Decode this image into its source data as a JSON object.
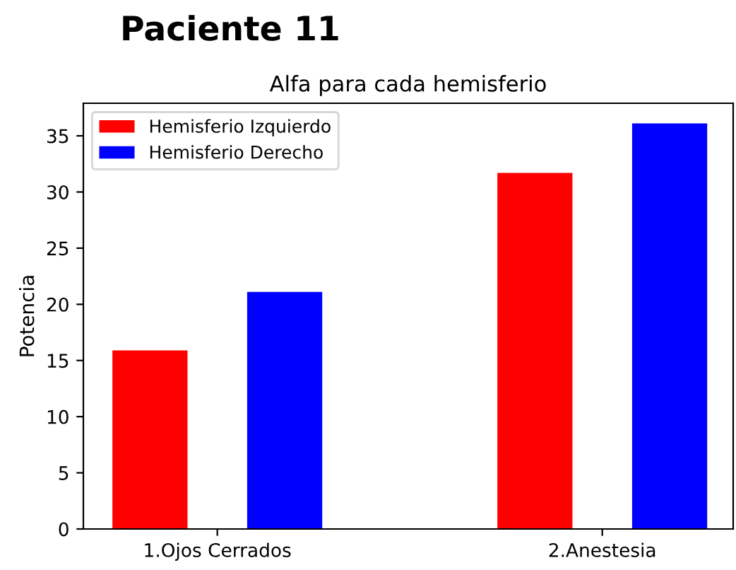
{
  "chart_data": {
    "type": "bar",
    "title": "Paciente 11",
    "subtitle": "Alfa para cada hemisferio",
    "ylabel": "Potencia",
    "categories": [
      "1.Ojos Cerrados",
      "2.Anestesia"
    ],
    "series": [
      {
        "name": "Hemisferio Izquierdo",
        "color": "#ff0000",
        "values": [
          15.9,
          31.7
        ]
      },
      {
        "name": "Hemisferio Derecho",
        "color": "#0000ff",
        "values": [
          21.1,
          36.1
        ]
      }
    ],
    "ylim": [
      0,
      37.9
    ],
    "yticks": [
      0,
      5,
      10,
      15,
      20,
      25,
      30,
      35
    ],
    "grid": false,
    "legend": "top left"
  }
}
